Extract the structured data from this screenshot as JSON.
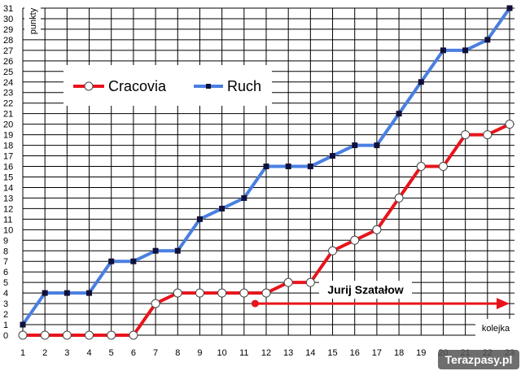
{
  "chart_data": {
    "type": "line",
    "x": [
      1,
      2,
      3,
      4,
      5,
      6,
      7,
      8,
      9,
      10,
      11,
      12,
      13,
      14,
      15,
      16,
      17,
      18,
      19,
      20,
      21,
      22,
      23
    ],
    "xlabel": "kolejka",
    "ylabel": "punkty",
    "xlim": [
      1,
      23
    ],
    "ylim": [
      0,
      31
    ],
    "yticks": [
      0,
      1,
      2,
      3,
      4,
      5,
      6,
      7,
      8,
      9,
      10,
      11,
      12,
      13,
      14,
      15,
      16,
      17,
      18,
      19,
      20,
      21,
      22,
      23,
      24,
      25,
      26,
      27,
      28,
      29,
      30,
      31
    ],
    "grid": true,
    "legend_position": "top-left",
    "series": [
      {
        "name": "Cracovia",
        "color": "#e8141b",
        "marker": "circle-white",
        "values": [
          0,
          0,
          0,
          0,
          0,
          0,
          3,
          4,
          4,
          4,
          4,
          4,
          5,
          5,
          8,
          9,
          10,
          13,
          16,
          16,
          19,
          19,
          20
        ]
      },
      {
        "name": "Ruch",
        "color": "#4a7fe0",
        "marker": "square-dark",
        "values": [
          1,
          4,
          4,
          4,
          7,
          7,
          8,
          8,
          11,
          12,
          13,
          16,
          16,
          16,
          17,
          18,
          18,
          21,
          24,
          27,
          27,
          28,
          31
        ]
      }
    ],
    "annotations": [
      {
        "text": "Jurij Szatałow",
        "arrow_from_x": 11.5,
        "arrow_to_x": 23,
        "arrow_y": 3,
        "color": "#e8141b"
      }
    ]
  },
  "watermark": "Terazpasy.pl"
}
